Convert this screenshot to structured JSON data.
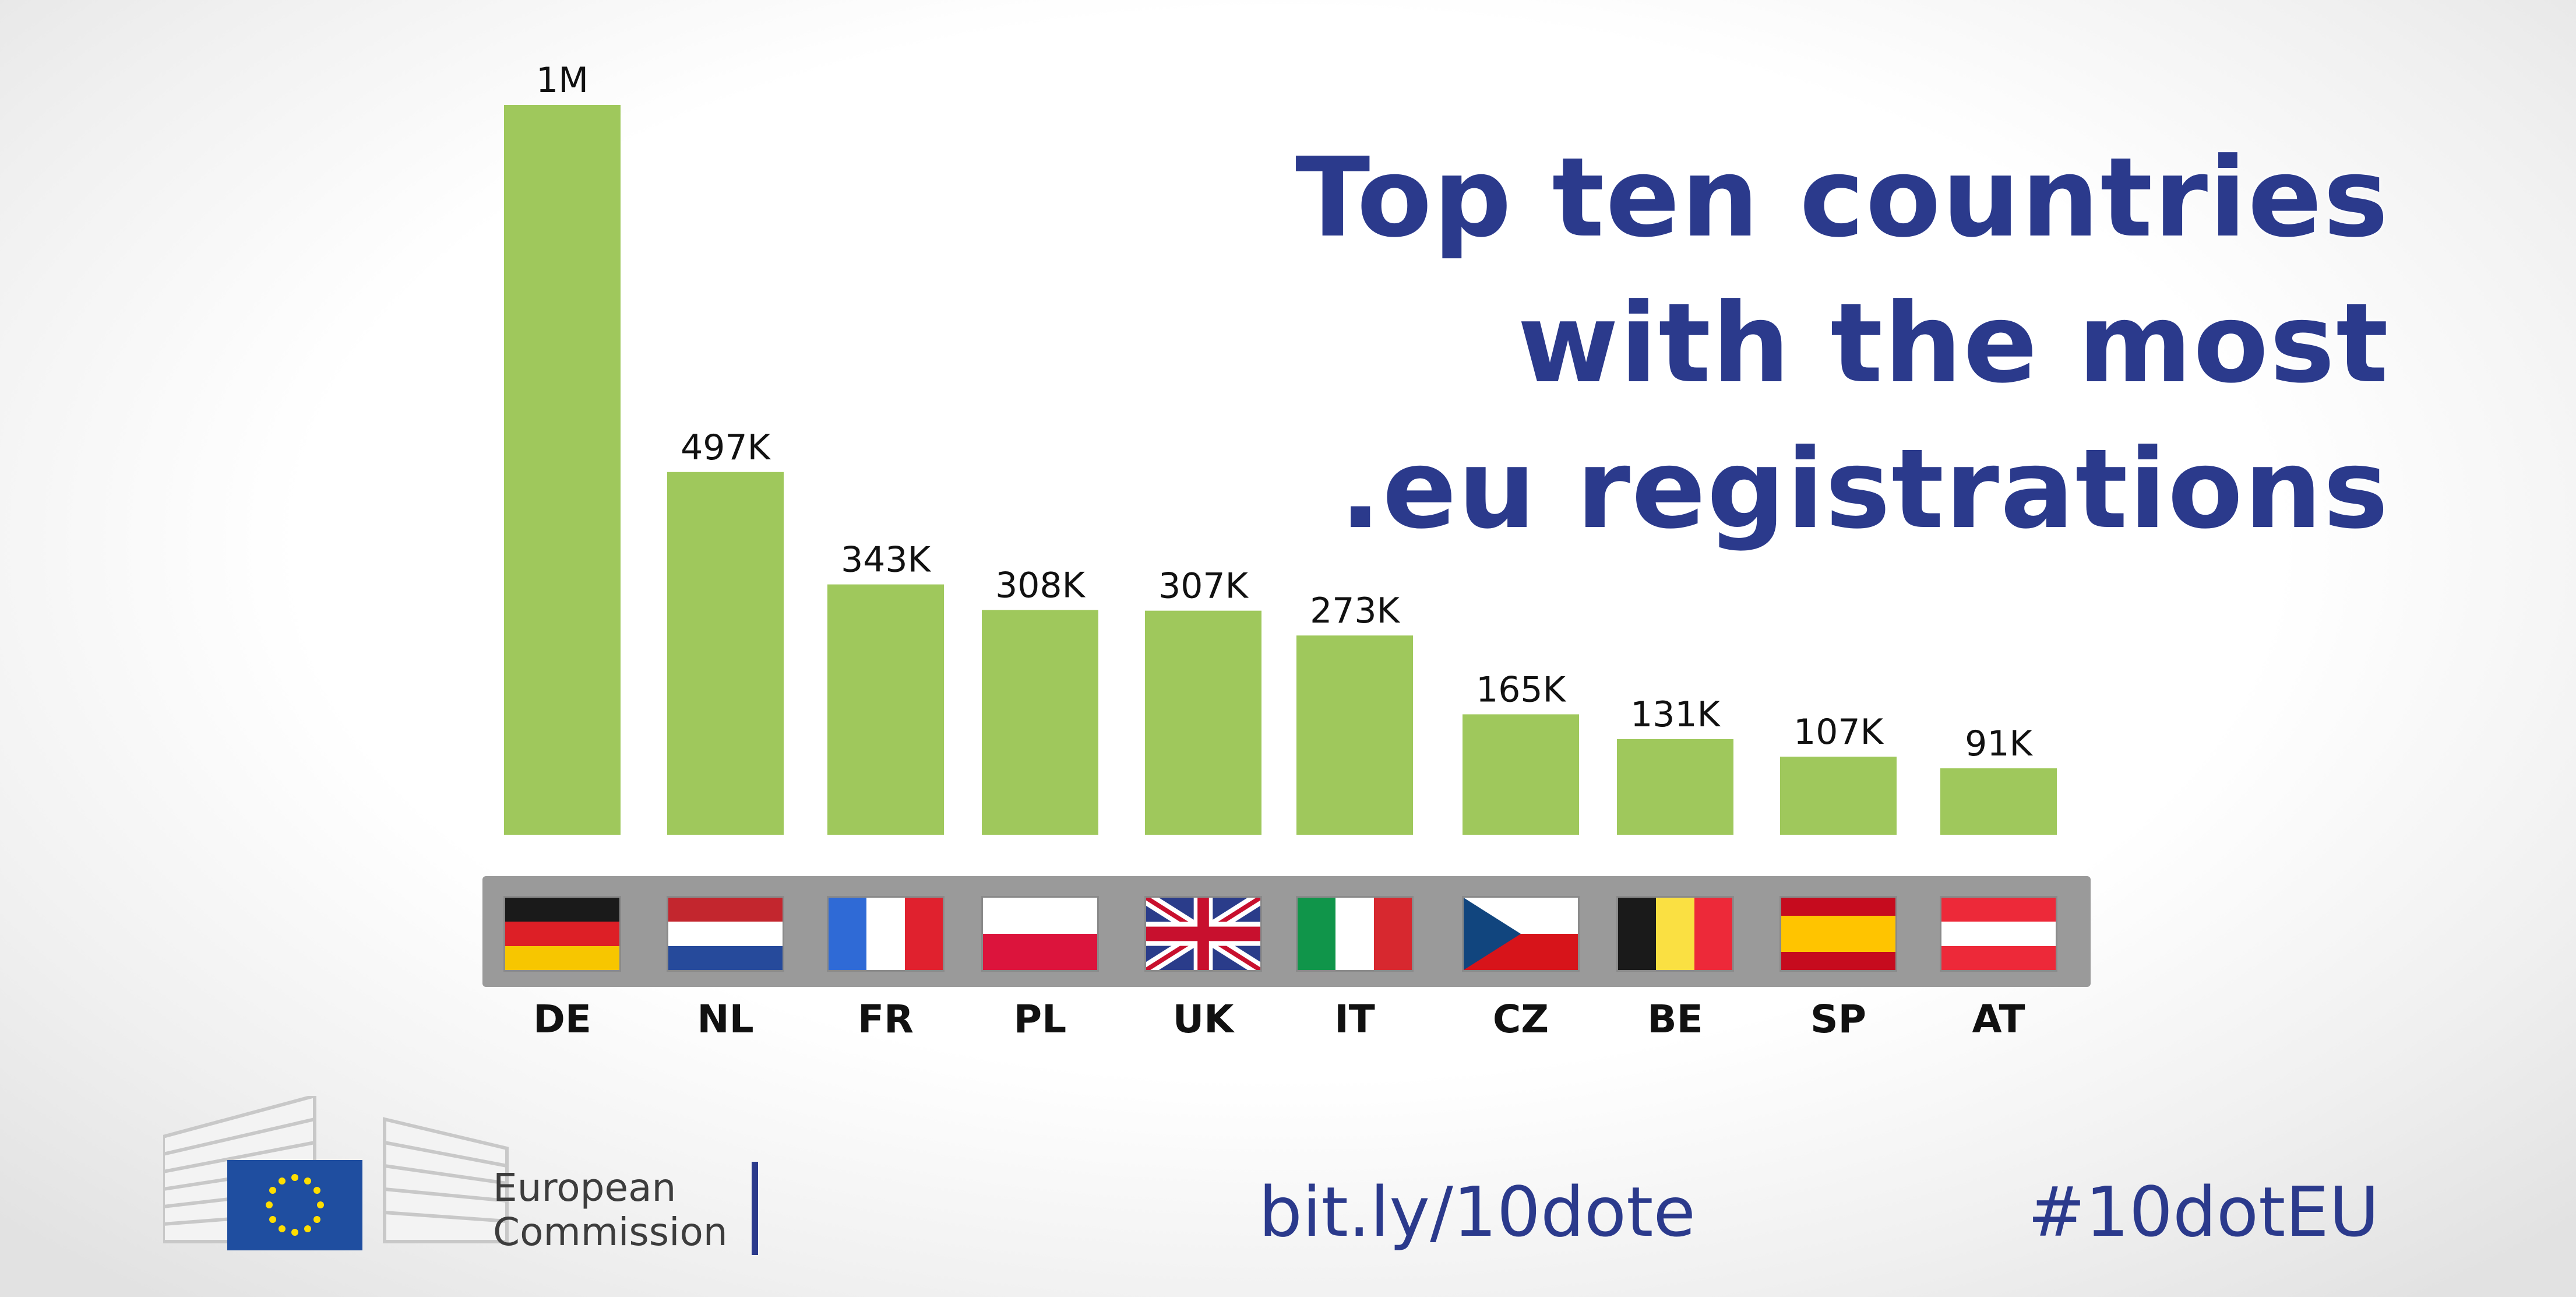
{
  "title_lines": [
    "Top ten countries",
    "with the most",
    ".eu registrations"
  ],
  "footer": {
    "logo_line1": "European",
    "logo_line2": "Commission",
    "short_link": "bit.ly/10dote",
    "hashtag": "#10dotEU"
  },
  "colors": {
    "bar": "#9fc85c",
    "title": "#2b3a8c",
    "flag_strip": "#9a9a9a"
  },
  "chart_data": {
    "type": "bar",
    "title": "Top ten countries with the most .eu registrations",
    "categories": [
      "DE",
      "NL",
      "FR",
      "PL",
      "UK",
      "IT",
      "CZ",
      "BE",
      "SP",
      "AT"
    ],
    "values": [
      1000000,
      497000,
      343000,
      308000,
      307000,
      273000,
      165000,
      131000,
      107000,
      91000
    ],
    "data_labels": [
      "1M",
      "497K",
      "343K",
      "308K",
      "307K",
      "273K",
      "165K",
      "131K",
      "107K",
      "91K"
    ],
    "flags": [
      "de-flag-icon",
      "nl-flag-icon",
      "fr-flag-icon",
      "pl-flag-icon",
      "uk-flag-icon",
      "it-flag-icon",
      "cz-flag-icon",
      "be-flag-icon",
      "es-flag-icon",
      "at-flag-icon"
    ],
    "ylim": [
      0,
      1000000
    ],
    "grid": false,
    "legend": "none"
  }
}
